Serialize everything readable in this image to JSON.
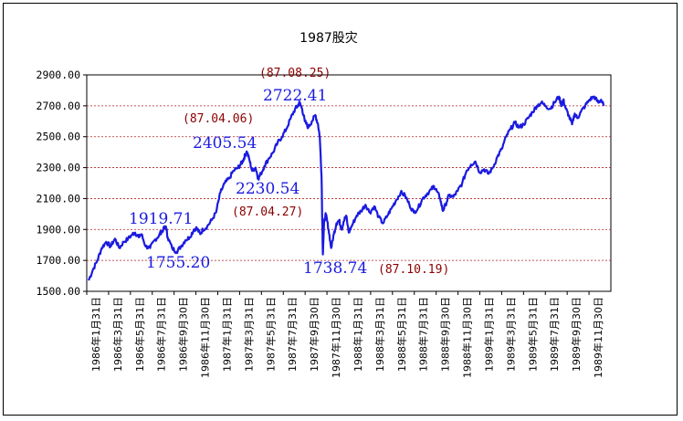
{
  "chart_data": {
    "type": "line",
    "title": "1987股灾",
    "ylim": [
      1500,
      2900
    ],
    "yticks": [
      "1500.00",
      "1700.00",
      "1900.00",
      "2100.00",
      "2300.00",
      "2500.00",
      "2700.00",
      "2900.00"
    ],
    "grid": "horizontal dashed",
    "xticks": [
      "1986年1月31日",
      "1986年3月31日",
      "1986年5月31日",
      "1986年7月31日",
      "1986年9月30日",
      "1986年11月30日",
      "1987年1月31日",
      "1987年3月31日",
      "1987年5月31日",
      "1987年7月31日",
      "1987年9月30日",
      "1987年11月30日",
      "1988年1月31日",
      "1988年3月31日",
      "1988年5月31日",
      "1988年7月31日",
      "1988年9月30日",
      "1988年11月30日",
      "1989年1月31日",
      "1989年3月31日",
      "1989年5月31日",
      "1989年7月31日",
      "1989年9月30日",
      "1989年11月30日"
    ],
    "series": [
      {
        "color": "#1a1ae0",
        "points": [
          [
            0,
            1570
          ],
          [
            0.5,
            1640
          ],
          [
            1,
            1700
          ],
          [
            1.5,
            1780
          ],
          [
            2,
            1820
          ],
          [
            2.5,
            1790
          ],
          [
            3,
            1840
          ],
          [
            3.5,
            1780
          ],
          [
            4,
            1820
          ],
          [
            4.5,
            1840
          ],
          [
            5,
            1870
          ],
          [
            5.3,
            1880
          ],
          [
            5.7,
            1850
          ],
          [
            6,
            1870
          ],
          [
            6.5,
            1790
          ],
          [
            7,
            1780
          ],
          [
            7.5,
            1830
          ],
          [
            8,
            1860
          ],
          [
            8.2,
            1880
          ],
          [
            8.5,
            1900
          ],
          [
            8.8,
            1920
          ],
          [
            9,
            1850
          ],
          [
            9.5,
            1780
          ],
          [
            10,
            1755
          ],
          [
            10.5,
            1790
          ],
          [
            11,
            1830
          ],
          [
            11.5,
            1850
          ],
          [
            12,
            1900
          ],
          [
            12.3,
            1910
          ],
          [
            12.7,
            1870
          ],
          [
            13,
            1900
          ],
          [
            13.5,
            1920
          ],
          [
            14,
            1960
          ],
          [
            14.5,
            2010
          ],
          [
            15,
            2140
          ],
          [
            15.5,
            2200
          ],
          [
            16,
            2230
          ],
          [
            16.5,
            2280
          ],
          [
            17,
            2300
          ],
          [
            17.3,
            2320
          ],
          [
            17.6,
            2350
          ],
          [
            17.8,
            2380
          ],
          [
            18,
            2405
          ],
          [
            18.3,
            2350
          ],
          [
            18.6,
            2280
          ],
          [
            19,
            2300
          ],
          [
            19.3,
            2230
          ],
          [
            19.6,
            2260
          ],
          [
            20,
            2310
          ],
          [
            20.5,
            2360
          ],
          [
            21,
            2400
          ],
          [
            21.5,
            2460
          ],
          [
            22,
            2500
          ],
          [
            22.5,
            2550
          ],
          [
            23,
            2620
          ],
          [
            23.5,
            2680
          ],
          [
            23.8,
            2700
          ],
          [
            24,
            2722
          ],
          [
            24.3,
            2680
          ],
          [
            24.6,
            2600
          ],
          [
            25,
            2560
          ],
          [
            25.4,
            2600
          ],
          [
            25.8,
            2640
          ],
          [
            26.1,
            2580
          ],
          [
            26.3,
            2500
          ],
          [
            26.5,
            2250
          ],
          [
            26.65,
            1738
          ],
          [
            26.8,
            1950
          ],
          [
            27,
            2000
          ],
          [
            27.3,
            1900
          ],
          [
            27.6,
            1780
          ],
          [
            27.9,
            1870
          ],
          [
            28.2,
            1940
          ],
          [
            28.5,
            1960
          ],
          [
            28.8,
            1900
          ],
          [
            29,
            1950
          ],
          [
            29.3,
            1990
          ],
          [
            29.6,
            1880
          ],
          [
            30,
            1930
          ],
          [
            30.5,
            1990
          ],
          [
            31,
            2020
          ],
          [
            31.5,
            2060
          ],
          [
            32,
            2010
          ],
          [
            32.5,
            2050
          ],
          [
            33,
            1980
          ],
          [
            33.5,
            1940
          ],
          [
            34,
            1990
          ],
          [
            34.5,
            2040
          ],
          [
            35,
            2090
          ],
          [
            35.5,
            2140
          ],
          [
            36,
            2120
          ],
          [
            36.5,
            2060
          ],
          [
            37,
            2010
          ],
          [
            37.5,
            2040
          ],
          [
            38,
            2100
          ],
          [
            38.5,
            2130
          ],
          [
            39,
            2160
          ],
          [
            39.3,
            2180
          ],
          [
            39.6,
            2150
          ],
          [
            40,
            2100
          ],
          [
            40.3,
            2020
          ],
          [
            40.6,
            2060
          ],
          [
            41,
            2120
          ],
          [
            41.5,
            2110
          ],
          [
            42,
            2150
          ],
          [
            42.5,
            2200
          ],
          [
            43,
            2280
          ],
          [
            43.5,
            2320
          ],
          [
            44,
            2340
          ],
          [
            44.5,
            2270
          ],
          [
            45,
            2290
          ],
          [
            45.5,
            2260
          ],
          [
            46,
            2300
          ],
          [
            46.5,
            2370
          ],
          [
            47,
            2420
          ],
          [
            47.5,
            2500
          ],
          [
            48,
            2550
          ],
          [
            48.5,
            2590
          ],
          [
            49,
            2560
          ],
          [
            49.5,
            2580
          ],
          [
            50,
            2620
          ],
          [
            50.5,
            2660
          ],
          [
            51,
            2700
          ],
          [
            51.5,
            2720
          ],
          [
            52,
            2700
          ],
          [
            52.5,
            2680
          ],
          [
            53,
            2720
          ],
          [
            53.5,
            2760
          ],
          [
            53.8,
            2700
          ],
          [
            54,
            2740
          ],
          [
            54.3,
            2680
          ],
          [
            54.6,
            2640
          ],
          [
            55,
            2580
          ],
          [
            55.3,
            2650
          ],
          [
            55.6,
            2620
          ],
          [
            56,
            2660
          ],
          [
            56.5,
            2700
          ],
          [
            57,
            2740
          ],
          [
            57.5,
            2760
          ],
          [
            58,
            2720
          ],
          [
            58.3,
            2740
          ],
          [
            58.6,
            2700
          ]
        ]
      }
    ],
    "annotations": [
      {
        "text": "1919.71",
        "color": "blue"
      },
      {
        "text": "1755.20",
        "color": "blue"
      },
      {
        "text": "2405.54",
        "color": "blue"
      },
      {
        "text": "2230.54",
        "color": "blue"
      },
      {
        "text": "2722.41",
        "color": "blue"
      },
      {
        "text": "1738.74",
        "color": "blue"
      },
      {
        "text": "(87.04.06)",
        "color": "darkred"
      },
      {
        "text": "(87.04.27)",
        "color": "darkred"
      },
      {
        "text": "(87.08.25)",
        "color": "darkred"
      },
      {
        "text": "(87.10.19)",
        "color": "darkred"
      }
    ]
  }
}
